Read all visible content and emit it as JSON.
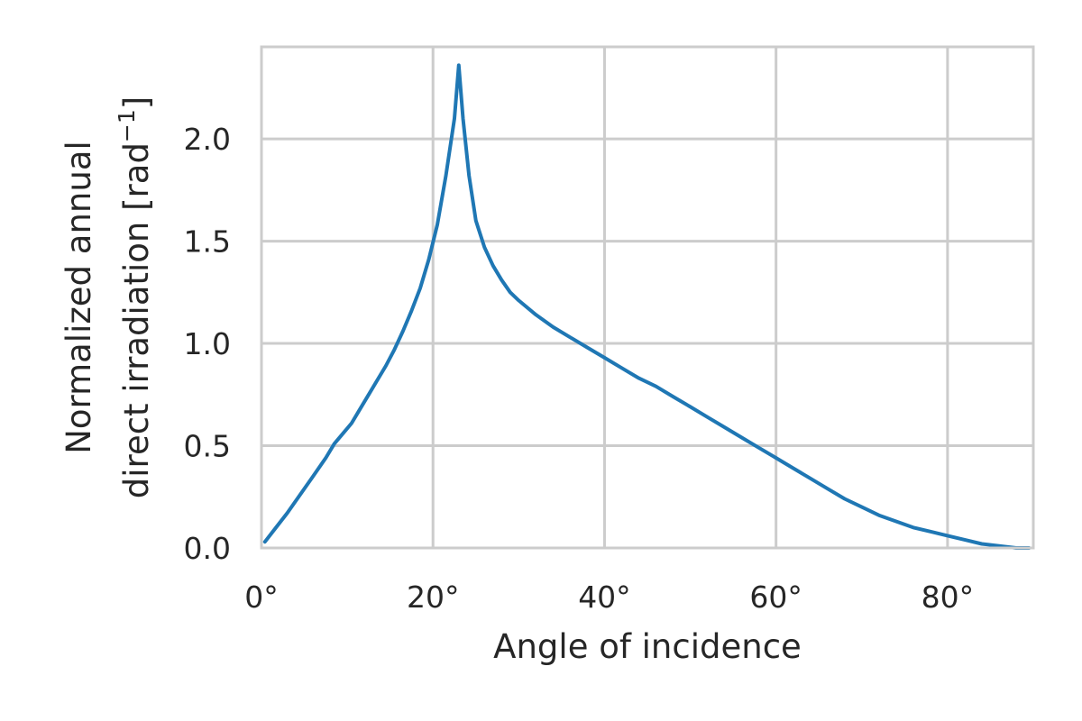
{
  "chart_data": {
    "type": "line",
    "title": "",
    "xlabel": "Angle of incidence",
    "ylabel_lines": [
      "Normalized annual",
      "direct irradiation [rad"
    ],
    "ylabel_superscript": "−1",
    "ylabel_suffix": "]",
    "xlim": [
      0,
      90
    ],
    "ylim": [
      0,
      2.45
    ],
    "grid": true,
    "legend": "none",
    "x_ticks": [
      0,
      20,
      40,
      60,
      80
    ],
    "x_tick_labels": [
      "0°",
      "20°",
      "40°",
      "60°",
      "80°"
    ],
    "y_ticks": [
      0.0,
      0.5,
      1.0,
      1.5,
      2.0
    ],
    "y_tick_labels": [
      "0.0",
      "0.5",
      "1.0",
      "1.5",
      "2.0"
    ],
    "series": [
      {
        "color": "#1f77b4",
        "x": [
          0.4,
          1.5,
          3,
          4.5,
          6,
          7.5,
          8.5,
          9.5,
          10.5,
          11.5,
          12.5,
          13.5,
          14.5,
          15.5,
          16.5,
          17.5,
          18.5,
          19.5,
          20.5,
          21.5,
          22.5,
          23.0,
          23.5,
          24.2,
          25.0,
          26.0,
          27.0,
          28.0,
          29.0,
          30.0,
          32,
          34,
          36,
          38,
          40,
          42,
          44,
          46,
          48,
          50,
          52,
          54,
          56,
          58,
          60,
          62,
          64,
          66,
          68,
          70,
          72,
          74,
          76,
          78,
          80,
          82,
          84,
          86,
          88,
          89.5
        ],
        "y": [
          0.03,
          0.09,
          0.17,
          0.26,
          0.35,
          0.44,
          0.51,
          0.56,
          0.61,
          0.68,
          0.75,
          0.82,
          0.89,
          0.97,
          1.06,
          1.16,
          1.27,
          1.41,
          1.58,
          1.82,
          2.1,
          2.36,
          2.1,
          1.82,
          1.6,
          1.47,
          1.38,
          1.31,
          1.25,
          1.21,
          1.14,
          1.08,
          1.03,
          0.98,
          0.93,
          0.88,
          0.83,
          0.79,
          0.74,
          0.69,
          0.64,
          0.59,
          0.54,
          0.49,
          0.44,
          0.39,
          0.34,
          0.29,
          0.24,
          0.2,
          0.16,
          0.13,
          0.1,
          0.08,
          0.06,
          0.04,
          0.02,
          0.01,
          0.0,
          0.0
        ]
      }
    ]
  }
}
